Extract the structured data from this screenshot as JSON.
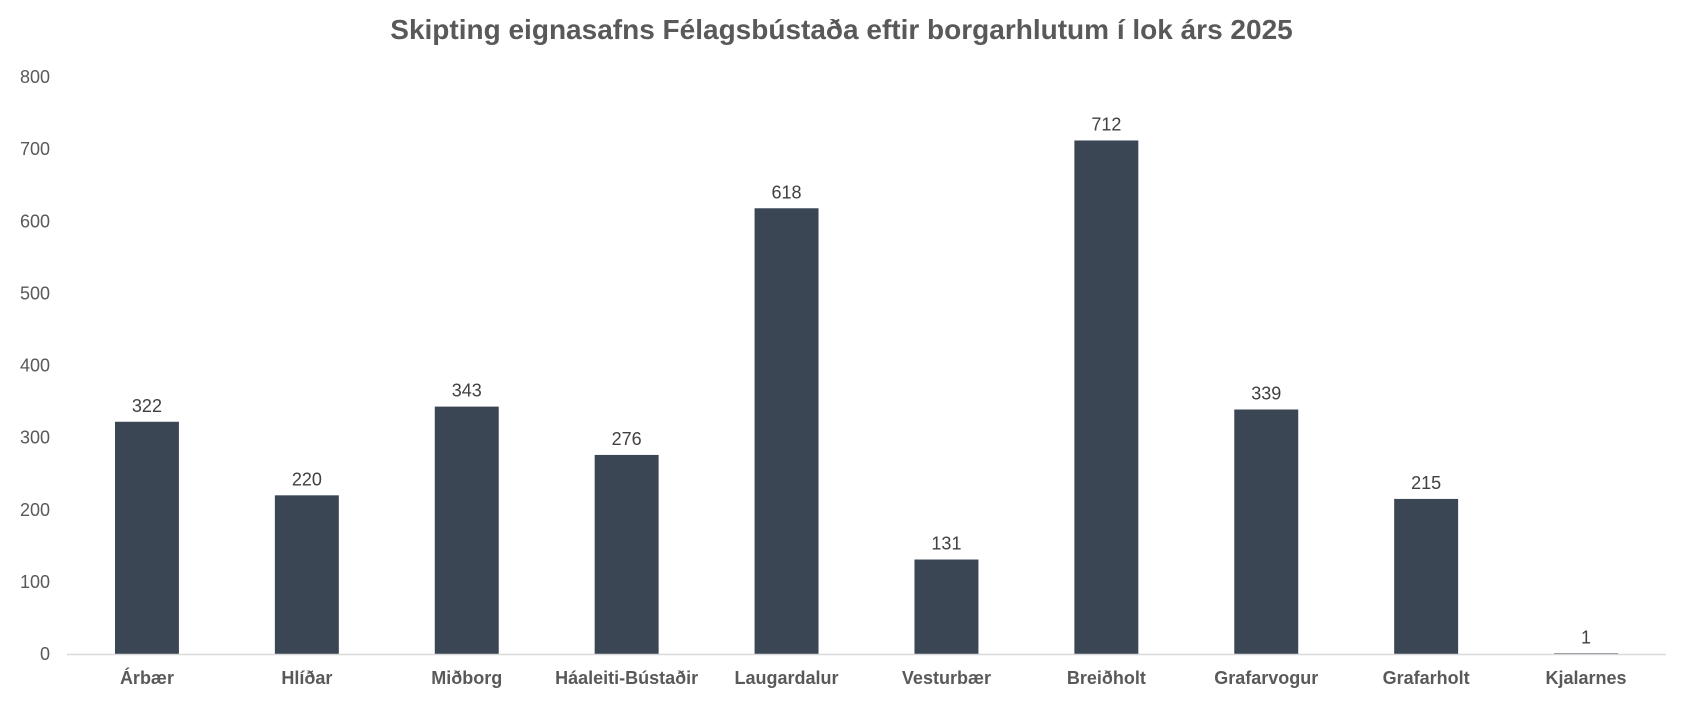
{
  "chart_data": {
    "type": "bar",
    "title": "Skipting eignasafns Félagsbústaða eftir borgarhlutum í lok árs 2025",
    "xlabel": "",
    "ylabel": "",
    "categories": [
      "Árbær",
      "Hlíðar",
      "Miðborg",
      "Háaleiti-Bústaðir",
      "Laugardalur",
      "Vesturbær",
      "Breiðholt",
      "Grafarvogur",
      "Grafarholt",
      "Kjalarnes"
    ],
    "values": [
      322,
      220,
      343,
      276,
      618,
      131,
      712,
      339,
      215,
      1
    ],
    "ylim": [
      0,
      800
    ],
    "yticks": [
      "0",
      "100",
      "200",
      "300",
      "400",
      "500",
      "600",
      "700",
      "800"
    ],
    "grid": false,
    "legend": "none",
    "bar_color": "#3a4654",
    "axis_color": "#d9d9d9"
  }
}
